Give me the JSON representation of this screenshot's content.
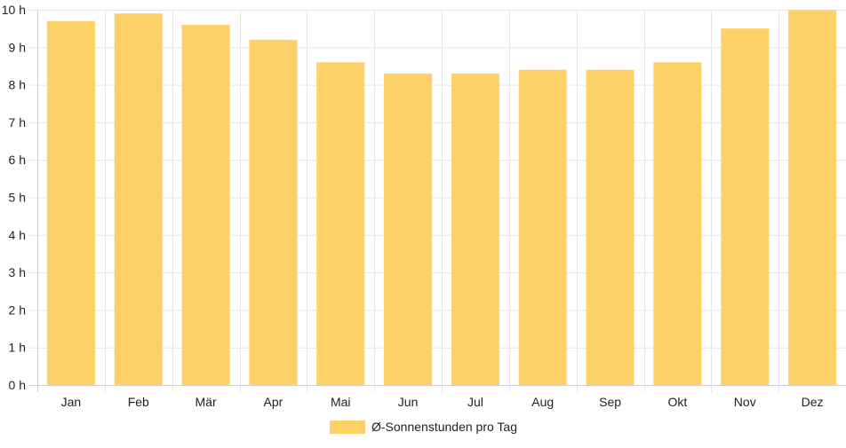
{
  "chart_data": {
    "type": "bar",
    "categories": [
      "Jan",
      "Feb",
      "Mär",
      "Apr",
      "Mai",
      "Jun",
      "Jul",
      "Aug",
      "Sep",
      "Okt",
      "Nov",
      "Dez"
    ],
    "series": [
      {
        "name": "Ø-Sonnenstunden pro Tag",
        "values": [
          9.7,
          9.9,
          9.6,
          9.2,
          8.6,
          8.3,
          8.3,
          8.4,
          8.4,
          8.6,
          9.5,
          10.0
        ]
      }
    ],
    "ylim": [
      0,
      10
    ],
    "yticks": [
      "0 h",
      "1 h",
      "2 h",
      "3 h",
      "4 h",
      "5 h",
      "6 h",
      "7 h",
      "8 h",
      "9 h",
      "10 h"
    ],
    "grid": true,
    "legend": "bottom",
    "colors": {
      "bar": "#fdd167",
      "grid": "#e6e6e6"
    }
  }
}
